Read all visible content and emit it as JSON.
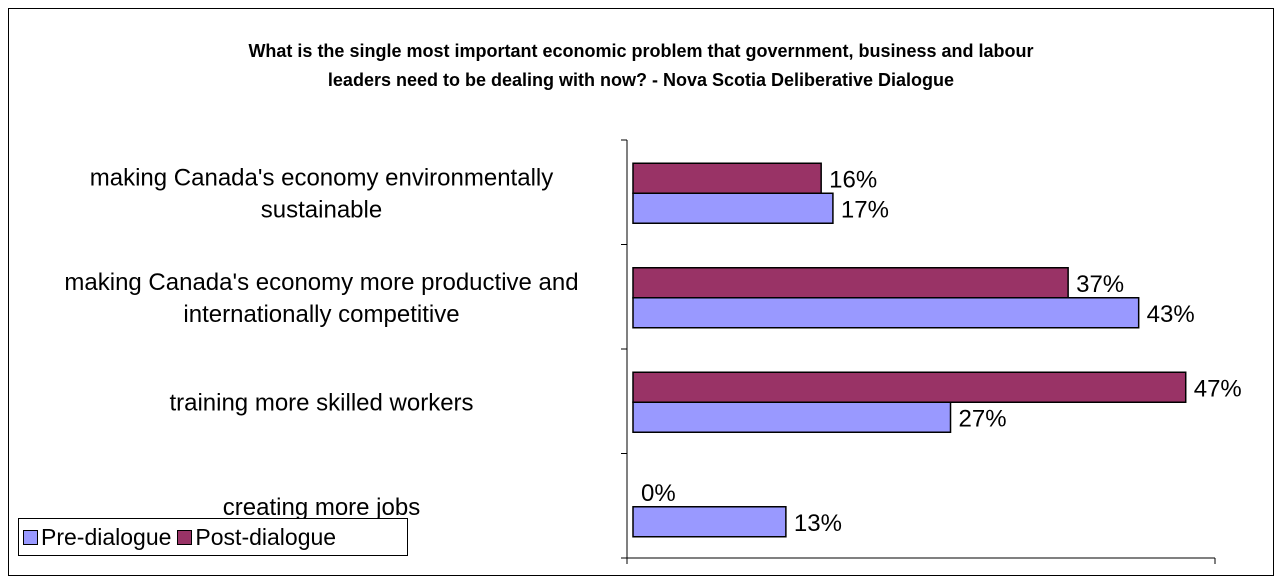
{
  "chart_data": {
    "type": "bar",
    "orientation": "horizontal",
    "title_lines": [
      "What is the single most important economic problem that government, business and labour",
      "leaders need to be dealing with now? - Nova Scotia Deliberative Dialogue"
    ],
    "categories": [
      [
        "making Canada's economy environmentally",
        "sustainable"
      ],
      [
        "making Canada's economy more productive and",
        "internationally competitive"
      ],
      [
        "training more skilled workers"
      ],
      [
        "creating more jobs"
      ]
    ],
    "series": [
      {
        "name": "Post-dialogue",
        "color": "#993366",
        "values": [
          16,
          37,
          47,
          0
        ],
        "labels": [
          "16%",
          "37%",
          "47%",
          "0%"
        ]
      },
      {
        "name": "Pre-dialogue",
        "color": "#9999ff",
        "values": [
          17,
          43,
          27,
          13
        ],
        "labels": [
          "17%",
          "43%",
          "27%",
          "13%"
        ]
      }
    ],
    "xlim": [
      0,
      50
    ],
    "legend_position": "bottom-left",
    "grid": false
  },
  "legend": {
    "pre_label": "Pre-dialogue",
    "post_label": "Post-dialogue"
  }
}
